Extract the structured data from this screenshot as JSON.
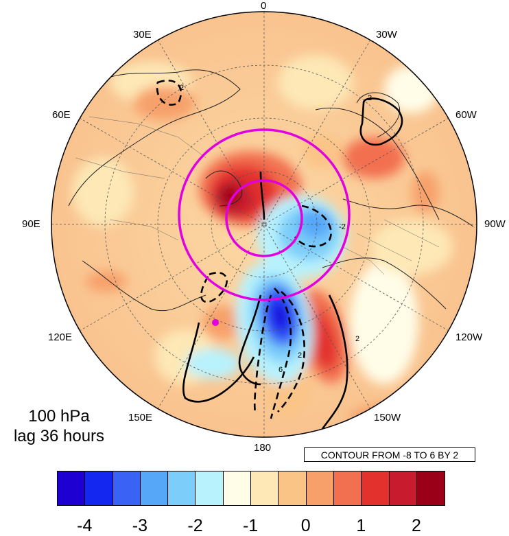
{
  "map": {
    "projection": "north-polar-stereographic",
    "pressure_level": "100 hPa",
    "lag": "lag 36 hours",
    "contour_note": "CONTOUR FROM -8 TO 6 BY 2",
    "lon_labels": {
      "top": "0",
      "bottom": "180",
      "left": "90E",
      "right": "90W",
      "e30": "30E",
      "e60": "60E",
      "e120": "120E",
      "e150": "150E",
      "w30": "30W",
      "w60": "60W",
      "w120": "120W",
      "w150": "150W"
    },
    "contour_labels": [
      "2",
      "2",
      "-2",
      "2",
      "6",
      "2"
    ],
    "highlight_color": "#e000e0",
    "colorbar": {
      "colors": [
        "#1e00d2",
        "#1427f0",
        "#3a62f5",
        "#57a7f9",
        "#7ccdf9",
        "#b8f2fd",
        "#fffde8",
        "#fde8b6",
        "#fbc487",
        "#f7a06a",
        "#f27050",
        "#e3322e",
        "#c81c2e",
        "#9b0019"
      ],
      "tick_labels": [
        "-4",
        "-3",
        "-2",
        "-1",
        "0",
        "1",
        "2"
      ]
    }
  }
}
